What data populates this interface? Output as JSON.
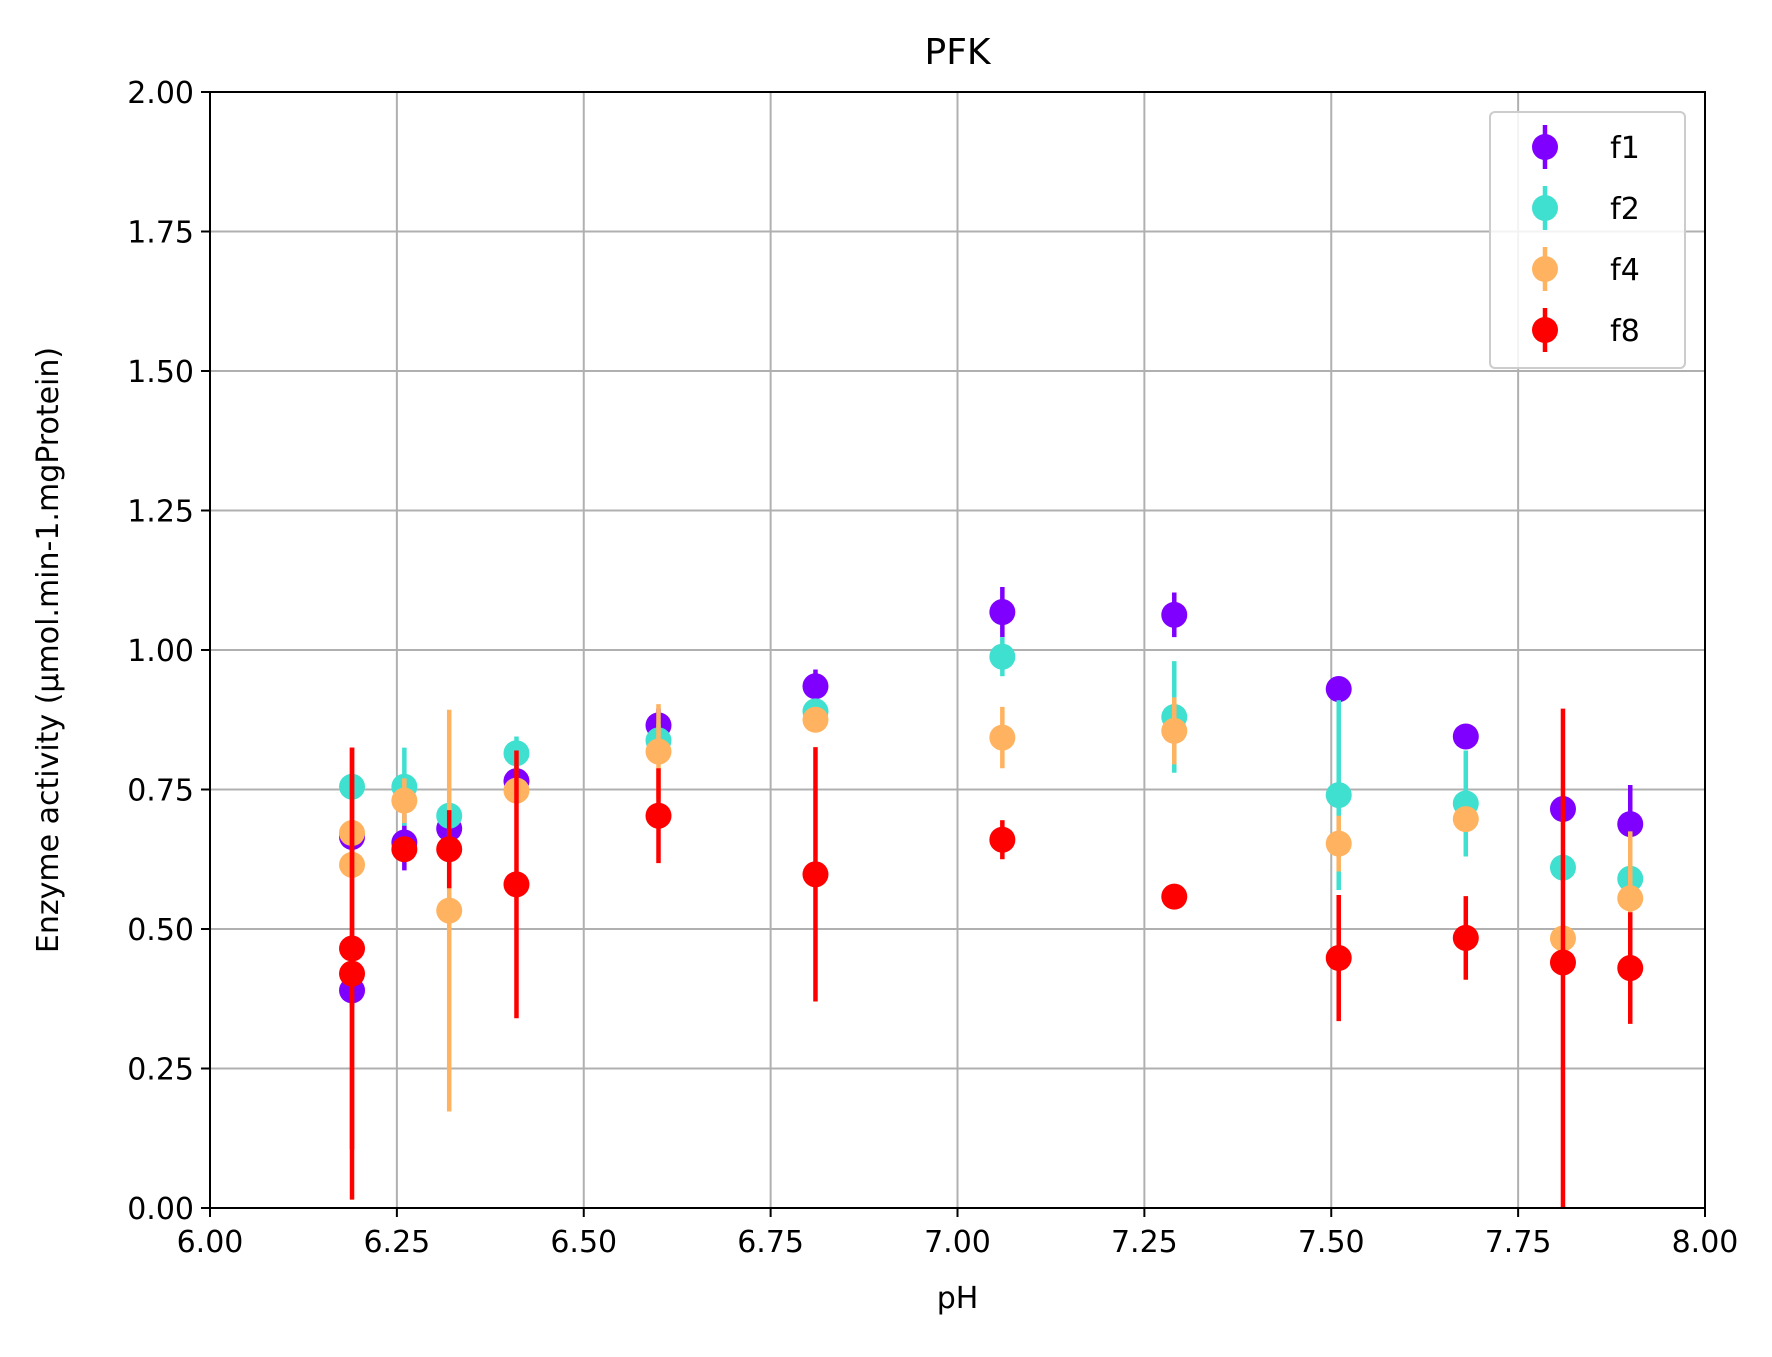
{
  "chart_data": {
    "type": "scatter",
    "title": "PFK",
    "xlabel": "pH",
    "ylabel": "Enzyme activity (µmol.min-1.mgProtein)",
    "xlim": [
      6.0,
      8.0
    ],
    "ylim": [
      0.0,
      2.0
    ],
    "xticks": [
      "6.00",
      "6.25",
      "6.50",
      "6.75",
      "7.00",
      "7.25",
      "7.50",
      "7.75",
      "8.00"
    ],
    "yticks": [
      "0.00",
      "0.25",
      "0.50",
      "0.75",
      "1.00",
      "1.25",
      "1.50",
      "1.75",
      "2.00"
    ],
    "grid": true,
    "legend_position": "top-right",
    "error_bars": true,
    "series": [
      {
        "name": "f1",
        "color": "#8000ff",
        "points": [
          {
            "x": 6.19,
            "y": 0.665,
            "err": 0.03
          },
          {
            "x": 6.19,
            "y": 0.39,
            "err": 0.03
          },
          {
            "x": 6.26,
            "y": 0.655,
            "err": 0.05
          },
          {
            "x": 6.32,
            "y": 0.68,
            "err": 0.03
          },
          {
            "x": 6.41,
            "y": 0.765,
            "err": 0.03
          },
          {
            "x": 6.6,
            "y": 0.865,
            "err": 0.03
          },
          {
            "x": 6.81,
            "y": 0.935,
            "err": 0.03
          },
          {
            "x": 7.06,
            "y": 1.068,
            "err": 0.045
          },
          {
            "x": 7.29,
            "y": 1.063,
            "err": 0.04
          },
          {
            "x": 7.51,
            "y": 0.93,
            "err": 0.02
          },
          {
            "x": 7.68,
            "y": 0.845,
            "err": 0.02
          },
          {
            "x": 7.81,
            "y": 0.715,
            "err": 0.02
          },
          {
            "x": 7.9,
            "y": 0.688,
            "err": 0.07
          }
        ]
      },
      {
        "name": "f2",
        "color": "#40e0d0",
        "points": [
          {
            "x": 6.19,
            "y": 0.755,
            "err": 0.02
          },
          {
            "x": 6.26,
            "y": 0.755,
            "err": 0.07
          },
          {
            "x": 6.32,
            "y": 0.703,
            "err": 0.02
          },
          {
            "x": 6.41,
            "y": 0.815,
            "err": 0.03
          },
          {
            "x": 6.6,
            "y": 0.838,
            "err": 0.03
          },
          {
            "x": 6.81,
            "y": 0.89,
            "err": 0.02
          },
          {
            "x": 7.06,
            "y": 0.988,
            "err": 0.035
          },
          {
            "x": 7.29,
            "y": 0.88,
            "err": 0.1
          },
          {
            "x": 7.51,
            "y": 0.74,
            "err": 0.17
          },
          {
            "x": 7.68,
            "y": 0.725,
            "err": 0.095
          },
          {
            "x": 7.81,
            "y": 0.61,
            "err": 0.02
          },
          {
            "x": 7.9,
            "y": 0.59,
            "err": 0.02
          }
        ]
      },
      {
        "name": "f4",
        "color": "#ffb360",
        "points": [
          {
            "x": 6.19,
            "y": 0.672,
            "err": 0.02
          },
          {
            "x": 6.19,
            "y": 0.615,
            "err": 0.02
          },
          {
            "x": 6.26,
            "y": 0.73,
            "err": 0.04
          },
          {
            "x": 6.32,
            "y": 0.533,
            "err": 0.36
          },
          {
            "x": 6.41,
            "y": 0.748,
            "err": 0.02
          },
          {
            "x": 6.6,
            "y": 0.818,
            "err": 0.085
          },
          {
            "x": 6.81,
            "y": 0.875,
            "err": 0.02
          },
          {
            "x": 7.06,
            "y": 0.843,
            "err": 0.055
          },
          {
            "x": 7.29,
            "y": 0.855,
            "err": 0.06
          },
          {
            "x": 7.51,
            "y": 0.653,
            "err": 0.05
          },
          {
            "x": 7.68,
            "y": 0.697,
            "err": 0.02
          },
          {
            "x": 7.81,
            "y": 0.483,
            "err": 0.02
          },
          {
            "x": 7.9,
            "y": 0.555,
            "err": 0.12
          }
        ]
      },
      {
        "name": "f8",
        "color": "#ff0000",
        "points": [
          {
            "x": 6.19,
            "y": 0.465,
            "err": 0.36
          },
          {
            "x": 6.19,
            "y": 0.42,
            "err": 0.405
          },
          {
            "x": 6.26,
            "y": 0.643,
            "err": 0.02
          },
          {
            "x": 6.32,
            "y": 0.643,
            "err": 0.07
          },
          {
            "x": 6.41,
            "y": 0.58,
            "err": 0.24
          },
          {
            "x": 6.6,
            "y": 0.703,
            "err": 0.085
          },
          {
            "x": 6.81,
            "y": 0.598,
            "err": 0.228
          },
          {
            "x": 7.06,
            "y": 0.66,
            "err": 0.035
          },
          {
            "x": 7.29,
            "y": 0.558,
            "err": 0.01
          },
          {
            "x": 7.51,
            "y": 0.448,
            "err": 0.113
          },
          {
            "x": 7.68,
            "y": 0.484,
            "err": 0.075
          },
          {
            "x": 7.81,
            "y": 0.44,
            "err": 0.455
          },
          {
            "x": 7.9,
            "y": 0.43,
            "err": 0.1
          }
        ]
      }
    ]
  }
}
